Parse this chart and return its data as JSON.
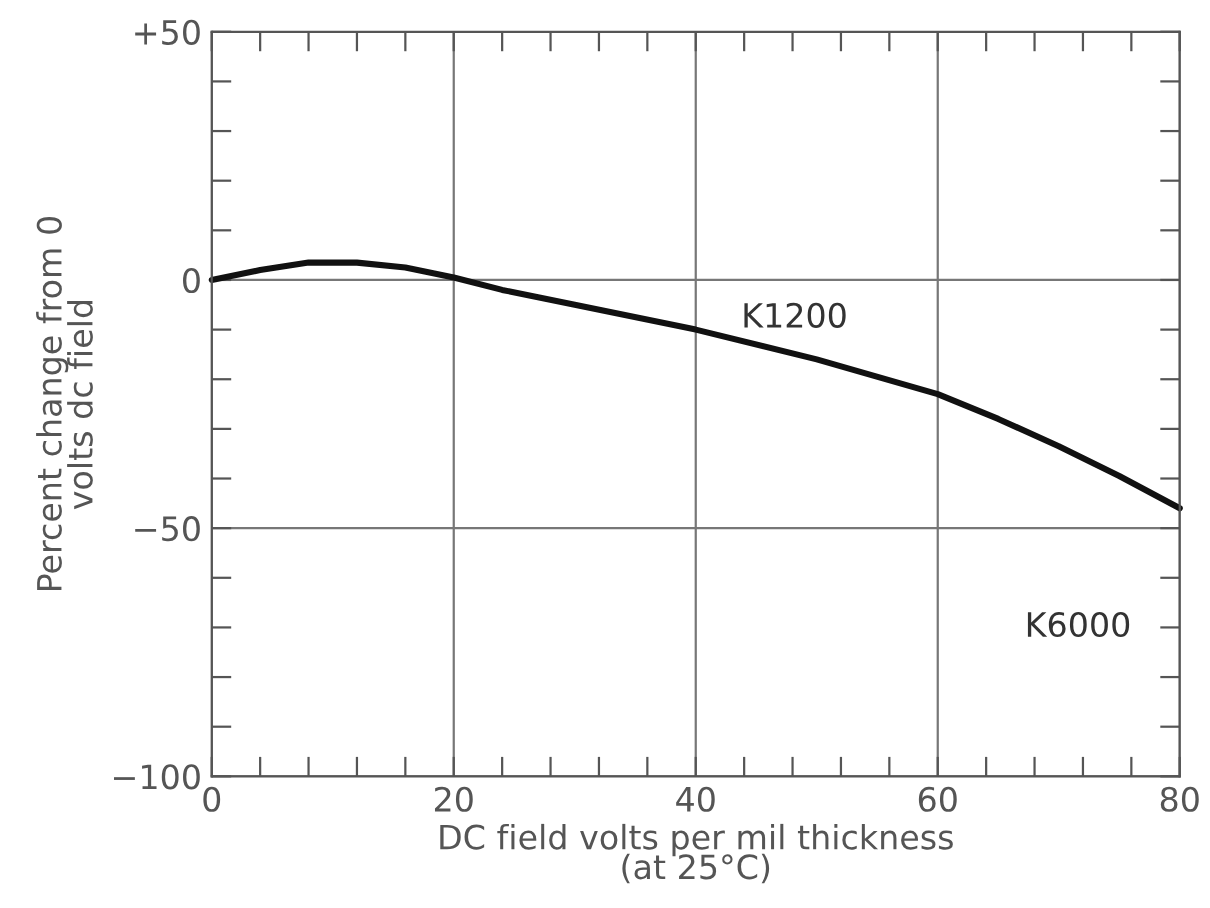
{
  "chart_data": {
    "type": "line",
    "xlabel": "DC field volts per mil thickness\n(at 25°C)",
    "ylabel": "Percent change from 0\nvolts dc field",
    "xlim": [
      0,
      80
    ],
    "ylim": [
      -100,
      50
    ],
    "xticks": [
      0,
      {
        "value": 4,
        "label": null
      },
      {
        "value": 8,
        "label": null
      },
      {
        "value": 12,
        "label": null
      },
      {
        "value": 16,
        "label": null
      },
      20,
      {
        "value": 24,
        "label": null
      },
      {
        "value": 28,
        "label": null
      },
      {
        "value": 32,
        "label": null
      },
      {
        "value": 36,
        "label": null
      },
      40,
      {
        "value": 44,
        "label": null
      },
      {
        "value": 48,
        "label": null
      },
      {
        "value": 52,
        "label": null
      },
      {
        "value": 56,
        "label": null
      },
      60,
      {
        "value": 64,
        "label": null
      },
      {
        "value": 68,
        "label": null
      },
      {
        "value": 72,
        "label": null
      },
      {
        "value": 76,
        "label": null
      },
      80
    ],
    "yticks": [
      {
        "value": -100,
        "label": "−100"
      },
      {
        "value": -90,
        "label": null
      },
      {
        "value": -80,
        "label": null
      },
      {
        "value": -70,
        "label": null
      },
      {
        "value": -60,
        "label": null
      },
      {
        "value": -50,
        "label": "−50"
      },
      {
        "value": -40,
        "label": null
      },
      {
        "value": -30,
        "label": null
      },
      {
        "value": -20,
        "label": null
      },
      {
        "value": -10,
        "label": null
      },
      0,
      {
        "value": 10,
        "label": null
      },
      {
        "value": 20,
        "label": null
      },
      {
        "value": 30,
        "label": null
      },
      {
        "value": 40,
        "label": null
      },
      {
        "value": 50,
        "label": "+50"
      }
    ],
    "grid": true,
    "series": [
      {
        "name": "K1200",
        "color": "#111111",
        "x": [
          0,
          4,
          8,
          12,
          16,
          20,
          24,
          30,
          40,
          50,
          60,
          65,
          70,
          75,
          80
        ],
        "values": [
          0,
          2,
          3.5,
          3.5,
          2.5,
          0.5,
          -2,
          -5,
          -10,
          -16,
          -23,
          -28,
          -33.5,
          -39.5,
          -46
        ]
      }
    ],
    "annotations": [
      "K6000"
    ]
  }
}
